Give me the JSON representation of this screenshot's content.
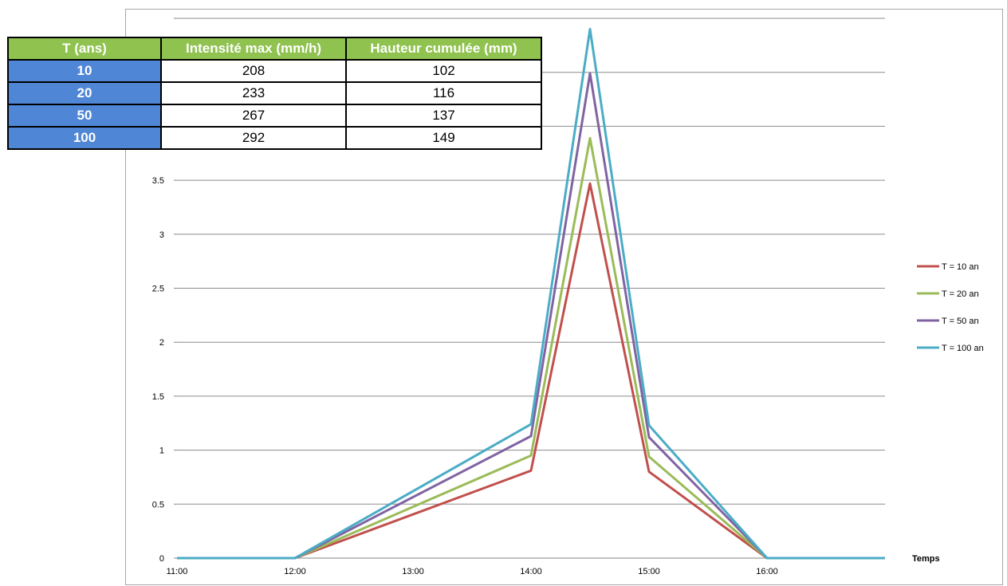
{
  "table": {
    "headers": [
      "T (ans)",
      "Intensité max (mm/h)",
      "Hauteur cumulée (mm)"
    ],
    "rows": [
      [
        "10",
        "208",
        "102"
      ],
      [
        "20",
        "233",
        "116"
      ],
      [
        "50",
        "267",
        "137"
      ],
      [
        "100",
        "292",
        "149"
      ]
    ],
    "header_color": "#8fc24e",
    "period_color": "#4f86d6"
  },
  "chart_data": {
    "type": "line",
    "title": "",
    "xlabel": "Temps",
    "ylabel": "",
    "x_ticks": [
      "11:00",
      "12:00",
      "13:00",
      "14:00",
      "15:00",
      "16:00"
    ],
    "xlim": [
      "11:00",
      "17:00"
    ],
    "ylim": [
      0,
      5
    ],
    "y_ticks": [
      "0",
      "0.5",
      "1",
      "1.5",
      "2",
      "2.5",
      "3",
      "3.5"
    ],
    "grid": "horizontal",
    "legend_position": "right",
    "series": [
      {
        "name": "T = 10 an",
        "color": "#c0504d",
        "points": [
          [
            "11:00",
            0
          ],
          [
            "12:00",
            0
          ],
          [
            "14:00",
            0.81
          ],
          [
            "14:30",
            3.47
          ],
          [
            "15:00",
            0.8
          ],
          [
            "16:00",
            0
          ],
          [
            "17:00",
            0
          ]
        ]
      },
      {
        "name": "T = 20 an",
        "color": "#9bbb59",
        "points": [
          [
            "11:00",
            0
          ],
          [
            "12:00",
            0
          ],
          [
            "14:00",
            0.95
          ],
          [
            "14:30",
            3.89
          ],
          [
            "15:00",
            0.94
          ],
          [
            "16:00",
            0
          ],
          [
            "17:00",
            0
          ]
        ]
      },
      {
        "name": "T = 50 an",
        "color": "#8064a2",
        "points": [
          [
            "11:00",
            0
          ],
          [
            "12:00",
            0
          ],
          [
            "14:00",
            1.13
          ],
          [
            "14:30",
            4.49
          ],
          [
            "15:00",
            1.12
          ],
          [
            "16:00",
            0
          ],
          [
            "17:00",
            0
          ]
        ]
      },
      {
        "name": "T = 100 an",
        "color": "#4bacc6",
        "points": [
          [
            "11:00",
            0
          ],
          [
            "12:00",
            0
          ],
          [
            "14:00",
            1.24
          ],
          [
            "14:30",
            4.9
          ],
          [
            "15:00",
            1.23
          ],
          [
            "16:00",
            0
          ],
          [
            "17:00",
            0
          ]
        ]
      }
    ]
  }
}
